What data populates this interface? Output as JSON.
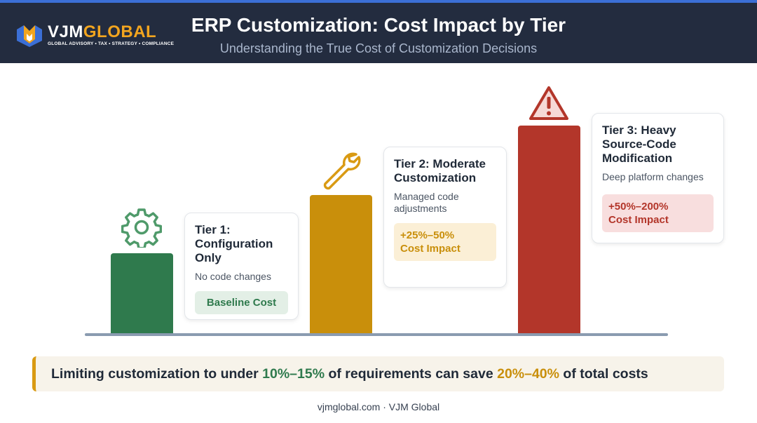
{
  "header": {
    "title": "ERP Customization: Cost Impact by Tier",
    "subtitle": "Understanding the True Cost of Customization Decisions",
    "logo": {
      "word_part1": "VJM",
      "word_part2": "GLOBAL",
      "tagline": "GLOBAL ADVISORY • TAX • STRATEGY • COMPLIANCE"
    }
  },
  "tiers": [
    {
      "title": "Tier 1: Configuration Only",
      "description": "No code changes",
      "impact": "Baseline Cost",
      "icon": "gear-icon",
      "color": "#2f7a4d"
    },
    {
      "title": "Tier 2: Moderate Customization",
      "description": "Managed code adjustments",
      "impact_line1": "+25%–50%",
      "impact_line2": "Cost Impact",
      "icon": "wrench-icon",
      "color": "#c98f0b"
    },
    {
      "title": "Tier 3: Heavy Source-Code Modification",
      "description": "Deep platform changes",
      "impact_line1": "+50%–200%",
      "impact_line2": "Cost Impact",
      "icon": "warning-icon",
      "color": "#b3362a"
    }
  ],
  "callout": {
    "part1": "Limiting customization to under ",
    "highlight1": "10%–15%",
    "part2": " of requirements can save ",
    "highlight2": "20%–40%",
    "part3": " of total costs"
  },
  "footer": {
    "text": "vjmglobal.com · VJM Global"
  },
  "colors": {
    "header_bg": "#232c3f",
    "accent_gold": "#f2a51f",
    "tier1": "#2f7a4d",
    "tier2": "#c98f0b",
    "tier3": "#b3362a"
  }
}
